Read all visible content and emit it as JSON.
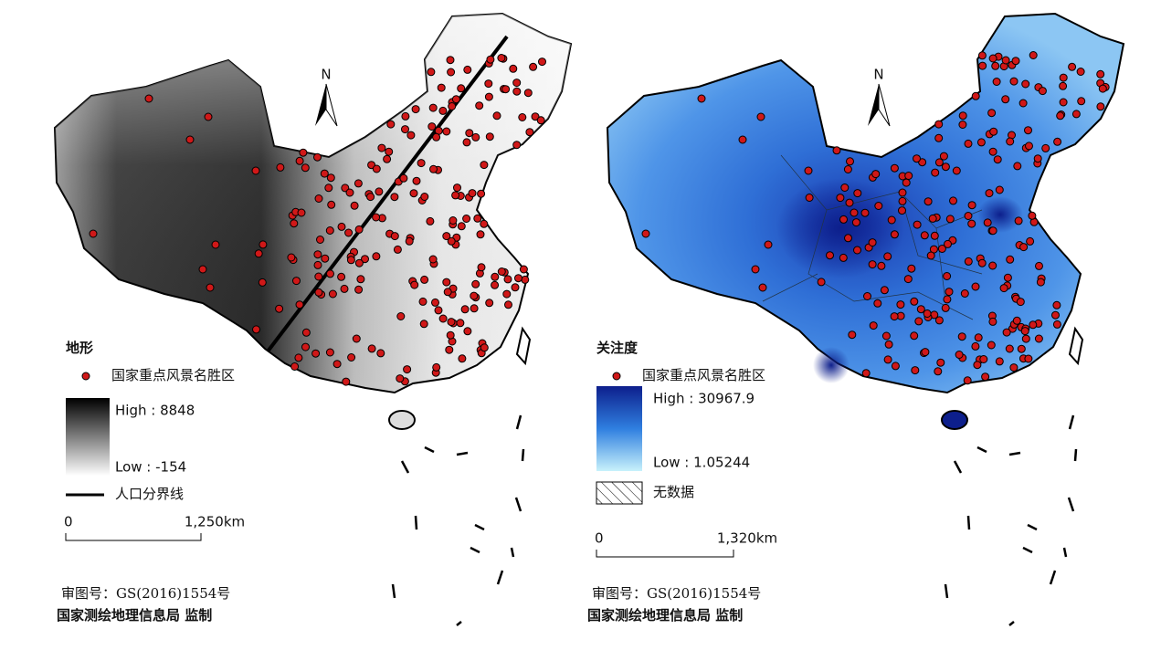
{
  "maps": [
    {
      "north": "N",
      "legend_title": "地形",
      "point_label": "国家重点风景名胜区",
      "high": "High : 8848",
      "low": "Low : -154",
      "line_label": "人口分界线",
      "scale_start": "0",
      "scale_end": "1,250km",
      "approval": "审图号：GS(2016)1554号",
      "publisher": "国家测绘地理信息局 监制"
    },
    {
      "north": "N",
      "legend_title": "关注度",
      "point_label": "国家重点风景名胜区",
      "high": "High : 30967.9",
      "low": "Low : 1.05244",
      "no_data": "无数据",
      "scale_start": "0",
      "scale_end": "1,320km",
      "approval": "审图号：GS(2016)1554号",
      "publisher": "国家测绘地理信息局 监制"
    }
  ]
}
